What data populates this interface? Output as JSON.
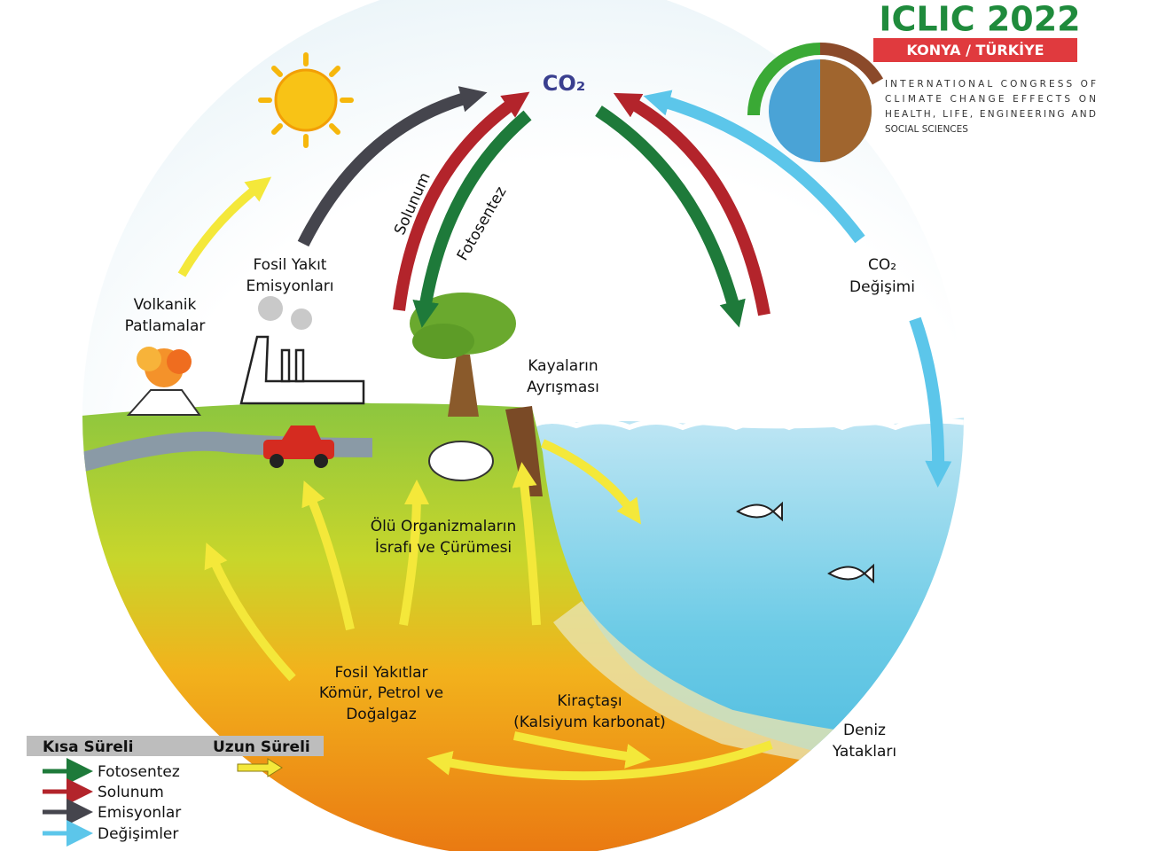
{
  "logo": {
    "title": "ICLIC 2022",
    "location": "KONYA / TÜRKİYE",
    "description": [
      "INTERNATIONAL CONGRESS OF",
      "CLIMATE CHANGE EFFECTS ON",
      "HEALTH, LIFE, ENGINEERING AND",
      "SOCIAL SCIENCES"
    ]
  },
  "diagram": {
    "co2": "CO₂",
    "respiration": "Solunum",
    "photosynthesis": "Fotosentez",
    "fossil_emissions": [
      "Fosil Yakıt",
      "Emisyonları"
    ],
    "volcanic": [
      "Volkanik",
      "Patlamalar"
    ],
    "weathering": [
      "Kayaların",
      "Ayrışması"
    ],
    "co2_exchange": [
      "CO₂",
      "Değişimi"
    ],
    "decay": [
      "Ölü Organizmaların",
      "İsrafı ve Çürümesi"
    ],
    "fossil_fuels": [
      "Fosil Yakıtlar",
      "Kömür, Petrol ve",
      "Doğalgaz"
    ],
    "limestone": [
      "Kiraçtaşı",
      "(Kalsiyum karbonat)"
    ],
    "sea_beds": [
      "Deniz",
      "Yatakları"
    ]
  },
  "legend": {
    "short_term": "Kısa Süreli",
    "long_term": "Uzun Süreli",
    "items": [
      "Fotosentez",
      "Solunum",
      "Emisyonlar",
      "Değişimler"
    ]
  }
}
